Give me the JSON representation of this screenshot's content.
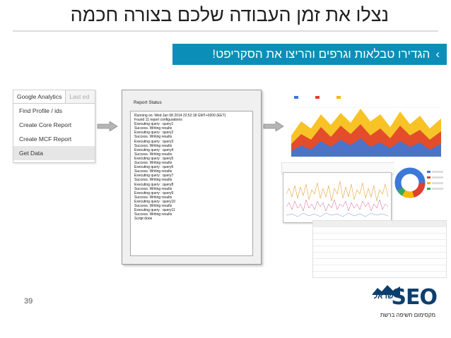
{
  "slide": {
    "title": "נצלו את זמן העבודה שלכם בצורה חכמה",
    "subtitle_bullet": "›",
    "subtitle": "הגדירו טבלאות וגרפים והריצו את הסקריפט!",
    "page_number": "39"
  },
  "ga_menu": {
    "tab_active": "Google Analytics",
    "tab_inactive": "Last ed",
    "items": [
      {
        "label": "Find Profile / ids"
      },
      {
        "label": "Create Core Report"
      },
      {
        "label": "Create MCF Report"
      },
      {
        "label": "Get Data"
      }
    ]
  },
  "report": {
    "title": "Report Status",
    "lines": [
      "Running on: Wed Jan 08 2014 22:52:18 GMT+0200 (EET)",
      "Found 11 report configurations",
      "Executing query : query1",
      "Success. Writing results",
      "Executing query : query2",
      "Success. Writing results",
      "Executing query : query3",
      "Success. Writing results",
      "Executing query : query4",
      "Success. Writing results",
      "Executing query : query5",
      "Success. Writing results",
      "Executing query : query6",
      "Success. Writing results",
      "Executing query : query7",
      "Success. Writing results",
      "Executing query : query8",
      "Success. Writing results",
      "Executing query : query9",
      "Success. Writing results",
      "Executing query : query10",
      "Success. Writing results",
      "Executing query : query11",
      "Success. Writing results",
      "Script done"
    ]
  },
  "logo": {
    "brand": "SEO",
    "hebrew": "ישראל",
    "tagline": "מקסימום חשיפה ברשת"
  },
  "colors": {
    "accent_bar": "#0b8fb8",
    "series_blue": "#3b78d8",
    "series_red": "#e0402d",
    "series_yellow": "#f6b900",
    "logo_blue": "#0d3f6e"
  }
}
